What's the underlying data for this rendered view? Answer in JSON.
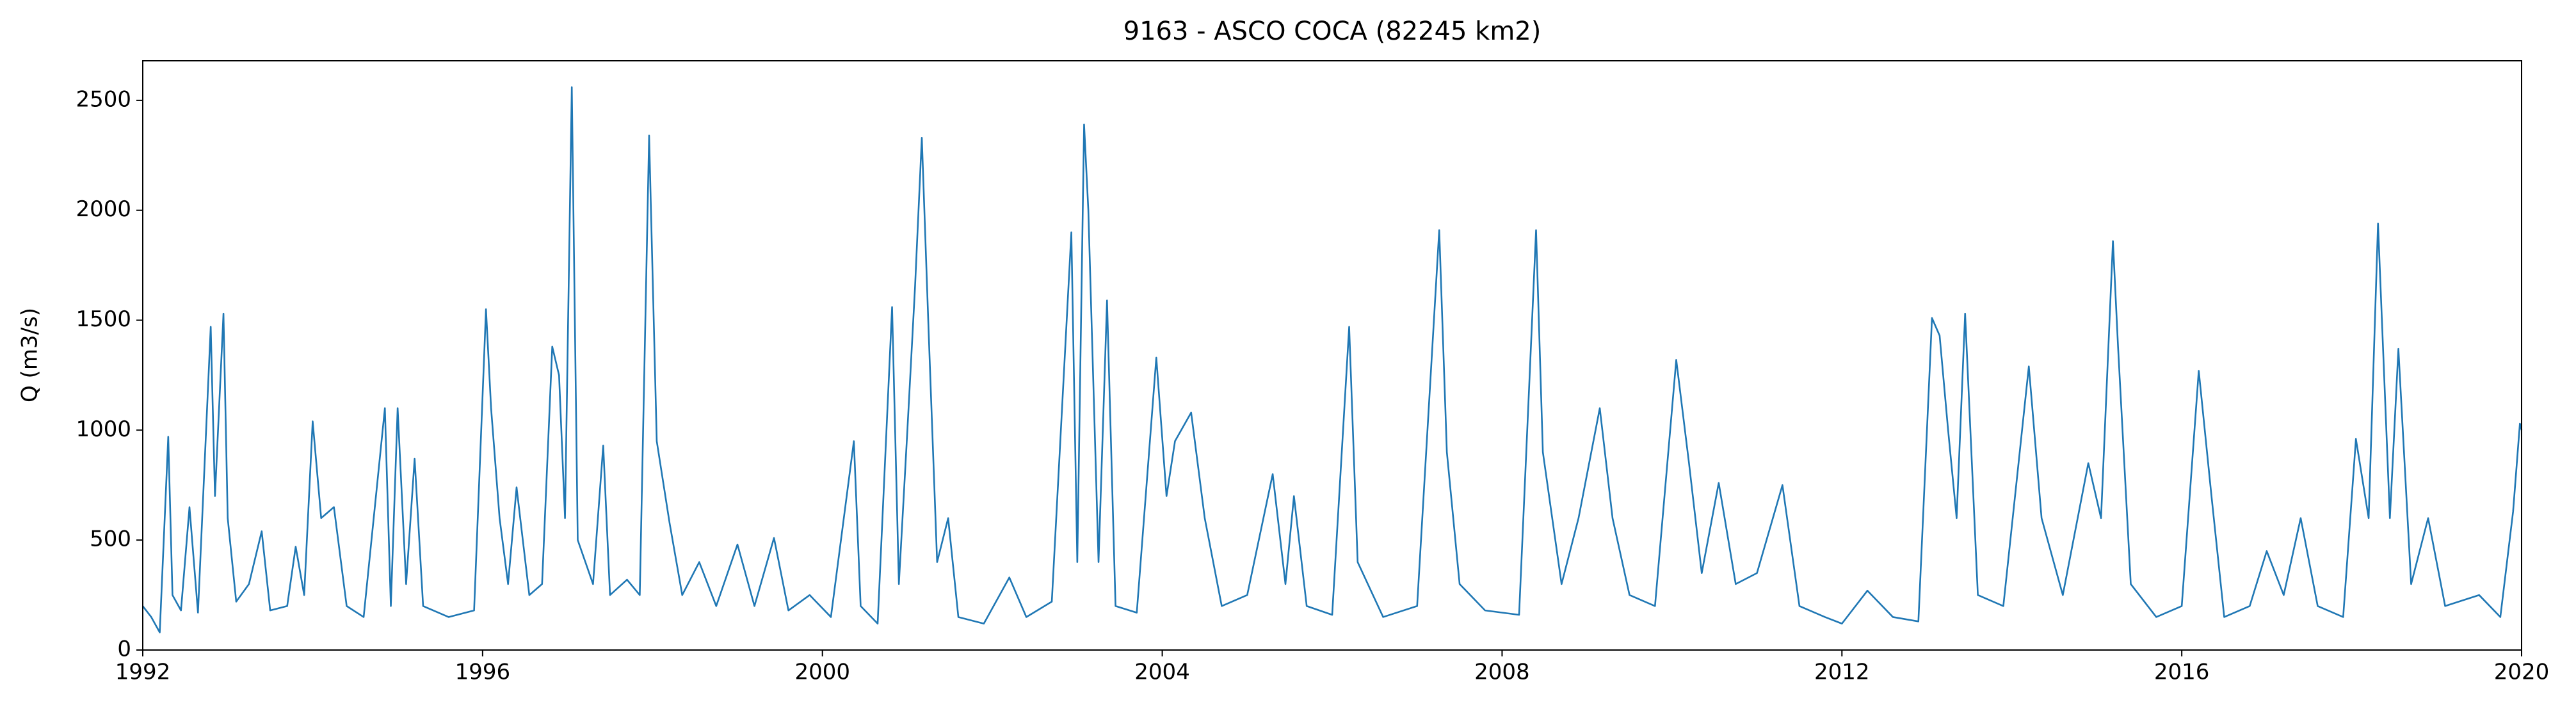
{
  "chart_data": {
    "type": "line",
    "title": "9163 - ASCO COCA (82245 km2)",
    "y_label": "Q (m3/s)",
    "x": [
      1992.0,
      1992.1,
      1992.2,
      1992.3,
      1992.35,
      1992.45,
      1992.55,
      1992.65,
      1992.8,
      1992.85,
      1992.95,
      1993.0,
      1993.1,
      1993.25,
      1993.4,
      1993.5,
      1993.7,
      1993.8,
      1993.9,
      1994.0,
      1994.1,
      1994.25,
      1994.4,
      1994.6,
      1994.85,
      1994.92,
      1995.0,
      1995.1,
      1995.2,
      1995.3,
      1995.6,
      1995.9,
      1996.04,
      1996.1,
      1996.2,
      1996.3,
      1996.4,
      1996.55,
      1996.7,
      1996.82,
      1996.9,
      1996.97,
      1997.05,
      1997.12,
      1997.3,
      1997.42,
      1997.5,
      1997.7,
      1997.85,
      1997.96,
      1998.05,
      1998.2,
      1998.35,
      1998.55,
      1998.75,
      1999.0,
      1999.2,
      1999.43,
      1999.6,
      1999.85,
      2000.1,
      2000.37,
      2000.45,
      2000.65,
      2000.82,
      2000.9,
      2001.0,
      2001.09,
      2001.17,
      2001.25,
      2001.35,
      2001.48,
      2001.6,
      2001.9,
      2002.2,
      2002.4,
      2002.7,
      2002.93,
      2003.0,
      2003.08,
      2003.13,
      2003.25,
      2003.35,
      2003.45,
      2003.7,
      2003.93,
      2004.05,
      2004.15,
      2004.34,
      2004.5,
      2004.7,
      2005.0,
      2005.3,
      2005.45,
      2005.55,
      2005.7,
      2006.0,
      2006.2,
      2006.3,
      2006.6,
      2007.0,
      2007.26,
      2007.35,
      2007.5,
      2007.8,
      2008.2,
      2008.4,
      2008.48,
      2008.7,
      2008.9,
      2009.15,
      2009.3,
      2009.5,
      2009.8,
      2010.05,
      2010.2,
      2010.35,
      2010.55,
      2010.75,
      2011.0,
      2011.3,
      2011.5,
      2011.8,
      2012.0,
      2012.3,
      2012.6,
      2012.9,
      2013.06,
      2013.15,
      2013.25,
      2013.35,
      2013.45,
      2013.6,
      2013.9,
      2014.2,
      2014.35,
      2014.6,
      2014.9,
      2015.05,
      2015.19,
      2015.25,
      2015.4,
      2015.7,
      2016.0,
      2016.2,
      2016.35,
      2016.5,
      2016.8,
      2017.0,
      2017.2,
      2017.4,
      2017.6,
      2017.9,
      2018.05,
      2018.2,
      2018.31,
      2018.45,
      2018.55,
      2018.7,
      2018.9,
      2019.1,
      2019.5,
      2019.75,
      2019.9,
      2019.98,
      2020.0
    ],
    "series": [
      {
        "color": "#1f77b4",
        "values": [
          200,
          150,
          80,
          970,
          250,
          180,
          650,
          170,
          1470,
          700,
          1530,
          600,
          220,
          300,
          540,
          180,
          200,
          470,
          250,
          1040,
          600,
          650,
          200,
          150,
          1100,
          200,
          1100,
          300,
          870,
          200,
          150,
          180,
          1550,
          1100,
          600,
          300,
          740,
          250,
          300,
          1380,
          1250,
          600,
          2560,
          500,
          300,
          930,
          250,
          320,
          250,
          2340,
          950,
          580,
          250,
          400,
          200,
          480,
          200,
          510,
          180,
          250,
          150,
          950,
          200,
          120,
          1560,
          300,
          1000,
          1650,
          2330,
          1450,
          400,
          600,
          150,
          120,
          330,
          150,
          220,
          1900,
          400,
          2390,
          2000,
          400,
          1590,
          200,
          170,
          1330,
          700,
          950,
          1080,
          600,
          200,
          250,
          800,
          300,
          700,
          200,
          160,
          1470,
          400,
          150,
          200,
          1910,
          900,
          300,
          180,
          160,
          1910,
          900,
          300,
          600,
          1100,
          600,
          250,
          200,
          1320,
          850,
          350,
          760,
          300,
          350,
          750,
          200,
          150,
          120,
          270,
          150,
          130,
          1510,
          1430,
          1000,
          600,
          1530,
          250,
          200,
          1290,
          600,
          250,
          850,
          600,
          1860,
          1380,
          300,
          150,
          200,
          1270,
          700,
          150,
          200,
          450,
          250,
          600,
          200,
          150,
          960,
          600,
          1940,
          600,
          1370,
          300,
          600,
          200,
          250,
          150,
          630,
          1030,
          1000
        ]
      }
    ],
    "xlim": [
      1992,
      2020
    ],
    "xticks": [
      1992,
      1996,
      2000,
      2004,
      2008,
      2012,
      2016,
      2020
    ],
    "ylim": [
      0,
      2680
    ],
    "yticks": [
      0,
      500,
      1000,
      1500,
      2000,
      2500
    ]
  }
}
